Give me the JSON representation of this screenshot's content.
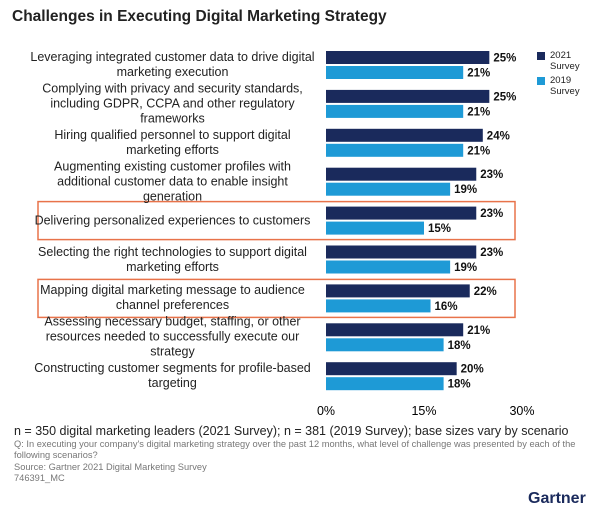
{
  "chart_data": {
    "type": "bar",
    "orientation": "horizontal",
    "title": "Challenges in Executing Digital Marketing Strategy",
    "categories": [
      "Leveraging integrated customer data to drive digital marketing execution",
      "Complying with privacy and security standards, including GDPR, CCPA and other regulatory frameworks",
      "Hiring qualified personnel to support digital marketing efforts",
      "Augmenting existing customer profiles with additional customer data to enable insight generation",
      "Delivering personalized experiences to customers",
      "Selecting the right technologies to support digital marketing efforts",
      "Mapping digital marketing message to audience channel preferences",
      "Assessing necessary budget, staffing, or other resources needed to successfully execute our strategy",
      "Constructing customer segments for profile-based targeting"
    ],
    "series": [
      {
        "name": "2021 Survey",
        "color": "#1a2a5c",
        "values": [
          25,
          25,
          24,
          23,
          23,
          23,
          22,
          21,
          20
        ],
        "value_labels": [
          "25%",
          "25%",
          "24%",
          "23%",
          "23%",
          "23%",
          "22%",
          "21%",
          "20%"
        ]
      },
      {
        "name": "2019 Survey",
        "color": "#1e9ad6",
        "values": [
          21,
          21,
          21,
          19,
          15,
          19,
          16,
          18,
          18
        ],
        "value_labels": [
          "21%",
          "21%",
          "21%",
          "19%",
          "15%",
          "19%",
          "16%",
          "18%",
          "18%"
        ]
      }
    ],
    "xlim": [
      0,
      30
    ],
    "xticks": [
      {
        "value": 0,
        "label": "0%"
      },
      {
        "value": 15,
        "label": "15%"
      },
      {
        "value": 30,
        "label": "30%"
      }
    ],
    "highlighted_categories": [
      4,
      6
    ],
    "highlight_color": "#e8734a",
    "legend": "top-right",
    "notes": [
      "n = 350 digital marketing leaders (2021 Survey); n = 381 (2019 Survey); base sizes vary by scenario",
      "Q: In executing your company's digital marketing strategy over the past 12 months, what level of challenge was presented by each of the following scenarios?",
      "Source: Gartner 2021 Digital Marketing Survey",
      "746391_MC"
    ],
    "logo": "Gartner"
  }
}
